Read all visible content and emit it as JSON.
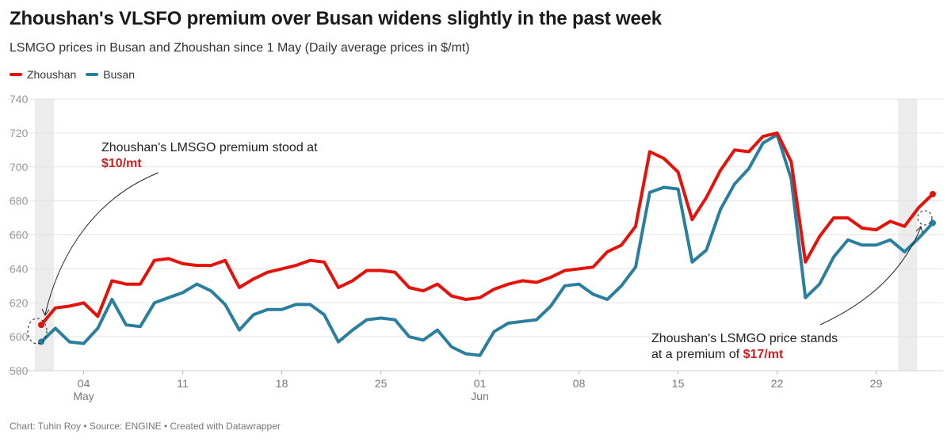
{
  "title": "Zhoushan's VLSFO premium over Busan widens slightly in the past week",
  "subtitle": "LSMGO prices in Busan and Zhoushan since 1 May (Daily average prices in $/mt)",
  "footer": "Chart: Tuhin Roy • Source: ENGINE • Created with Datawrapper",
  "colors": {
    "zhoushan": "#e3120b",
    "busan": "#2a7f9e"
  },
  "chart_data": {
    "type": "line",
    "title": "Zhoushan's VLSFO premium over Busan widens slightly in the past week",
    "subtitle": "LSMGO prices in Busan and Zhoushan since 1 May (Daily average prices in $/mt)",
    "xlabel": "",
    "ylabel": "",
    "ylim": [
      580,
      740
    ],
    "yticks": [
      580,
      600,
      620,
      640,
      660,
      680,
      700,
      720,
      740
    ],
    "x_start": "May 1",
    "x_end": "Jul 1",
    "xticks": [
      {
        "day": 3,
        "label": "04",
        "sub": "May"
      },
      {
        "day": 10,
        "label": "11",
        "sub": ""
      },
      {
        "day": 17,
        "label": "18",
        "sub": ""
      },
      {
        "day": 24,
        "label": "25",
        "sub": ""
      },
      {
        "day": 31,
        "label": "01",
        "sub": "Jun"
      },
      {
        "day": 38,
        "label": "08",
        "sub": ""
      },
      {
        "day": 45,
        "label": "15",
        "sub": ""
      },
      {
        "day": 52,
        "label": "22",
        "sub": ""
      },
      {
        "day": 59,
        "label": "29",
        "sub": ""
      }
    ],
    "highlight_days": [
      0,
      61
    ],
    "grid": true,
    "legend": "top-left",
    "series": [
      {
        "name": "Zhoushan",
        "color": "#e3120b",
        "values": [
          607,
          617,
          618,
          620,
          612,
          633,
          631,
          631,
          645,
          646,
          643,
          642,
          642,
          645,
          629,
          634,
          638,
          640,
          642,
          645,
          644,
          629,
          633,
          639,
          639,
          638,
          629,
          627,
          631,
          624,
          622,
          623,
          628,
          631,
          633,
          632,
          635,
          639,
          640,
          641,
          650,
          654,
          665,
          709,
          705,
          697,
          669,
          682,
          698,
          710,
          709,
          718,
          720,
          703,
          644,
          659,
          670,
          670,
          664,
          663,
          668,
          665,
          676,
          684
        ]
      },
      {
        "name": "Busan",
        "color": "#2a7f9e",
        "values": [
          597,
          605,
          597,
          596,
          605,
          622,
          607,
          606,
          620,
          623,
          626,
          631,
          627,
          619,
          604,
          613,
          616,
          616,
          619,
          619,
          613,
          597,
          604,
          610,
          611,
          610,
          600,
          598,
          604,
          594,
          590,
          589,
          603,
          608,
          609,
          610,
          618,
          630,
          631,
          625,
          622,
          630,
          641,
          685,
          688,
          687,
          644,
          651,
          675,
          690,
          699,
          714,
          719,
          693,
          623,
          631,
          647,
          657,
          654,
          654,
          657,
          650,
          658,
          667
        ]
      }
    ],
    "annotations": [
      {
        "text": "Zhoushan's LMSGO premium stood at",
        "highlight": "$10/mt"
      },
      {
        "text1": "Zhoushan's LSMGO price stands",
        "text2": "at a premium of ",
        "highlight": "$17/mt"
      }
    ]
  }
}
